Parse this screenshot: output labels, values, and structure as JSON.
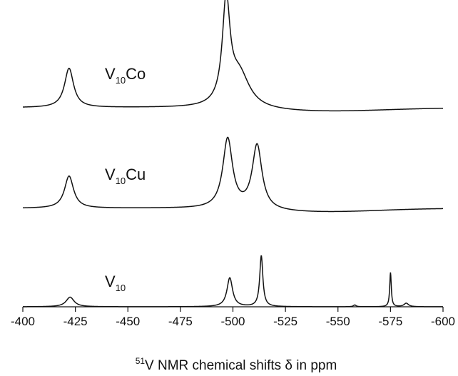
{
  "chart_data": {
    "type": "line",
    "title": "",
    "xlabel": {
      "sup": "51",
      "text": "V NMR chemical shifts δ in ppm"
    },
    "ylabel": "",
    "xlim": [
      -400,
      -600
    ],
    "x_reversed": true,
    "y_axis_visible": false,
    "grid": false,
    "xticks": [
      -400,
      -425,
      -450,
      -475,
      -500,
      -525,
      -550,
      -575,
      -600
    ],
    "xtick_labels": [
      "-400",
      "-425",
      "-450",
      "-475",
      "-500",
      "-525",
      "-550",
      "-575",
      "-600"
    ],
    "series": [
      {
        "label_base": "V",
        "label_sub": "10",
        "label_suffix": "Co",
        "peaks": [
          {
            "x": -422,
            "height": 0.39,
            "width": 2.6
          },
          {
            "x": -496.8,
            "height": 1.0,
            "width": 2.2
          },
          {
            "x": -503,
            "height": 0.34,
            "width": 6
          }
        ],
        "baseline_dip": {
          "x": -540,
          "depth": 0.04,
          "width": 45
        }
      },
      {
        "label_base": "V",
        "label_sub": "10",
        "label_suffix": "Cu",
        "peaks": [
          {
            "x": -422,
            "height": 0.41,
            "width": 2.6
          },
          {
            "x": -497.5,
            "height": 0.89,
            "width": 2.8
          },
          {
            "x": -511.5,
            "height": 0.82,
            "width": 2.8
          }
        ],
        "baseline_dip": {
          "x": -540,
          "depth": 0.05,
          "width": 40
        }
      },
      {
        "label_base": "V",
        "label_sub": "10",
        "label_suffix": "",
        "peaks": [
          {
            "x": -422.5,
            "height": 0.11,
            "width": 2.3
          },
          {
            "x": -498.5,
            "height": 0.33,
            "width": 1.6
          },
          {
            "x": -513.5,
            "height": 0.58,
            "width": 0.9
          },
          {
            "x": -558,
            "height": 0.02,
            "width": 0.8
          },
          {
            "x": -575,
            "height": 0.39,
            "width": 0.45
          },
          {
            "x": -582.5,
            "height": 0.04,
            "width": 1.3
          }
        ],
        "baseline_dip": null
      }
    ]
  }
}
